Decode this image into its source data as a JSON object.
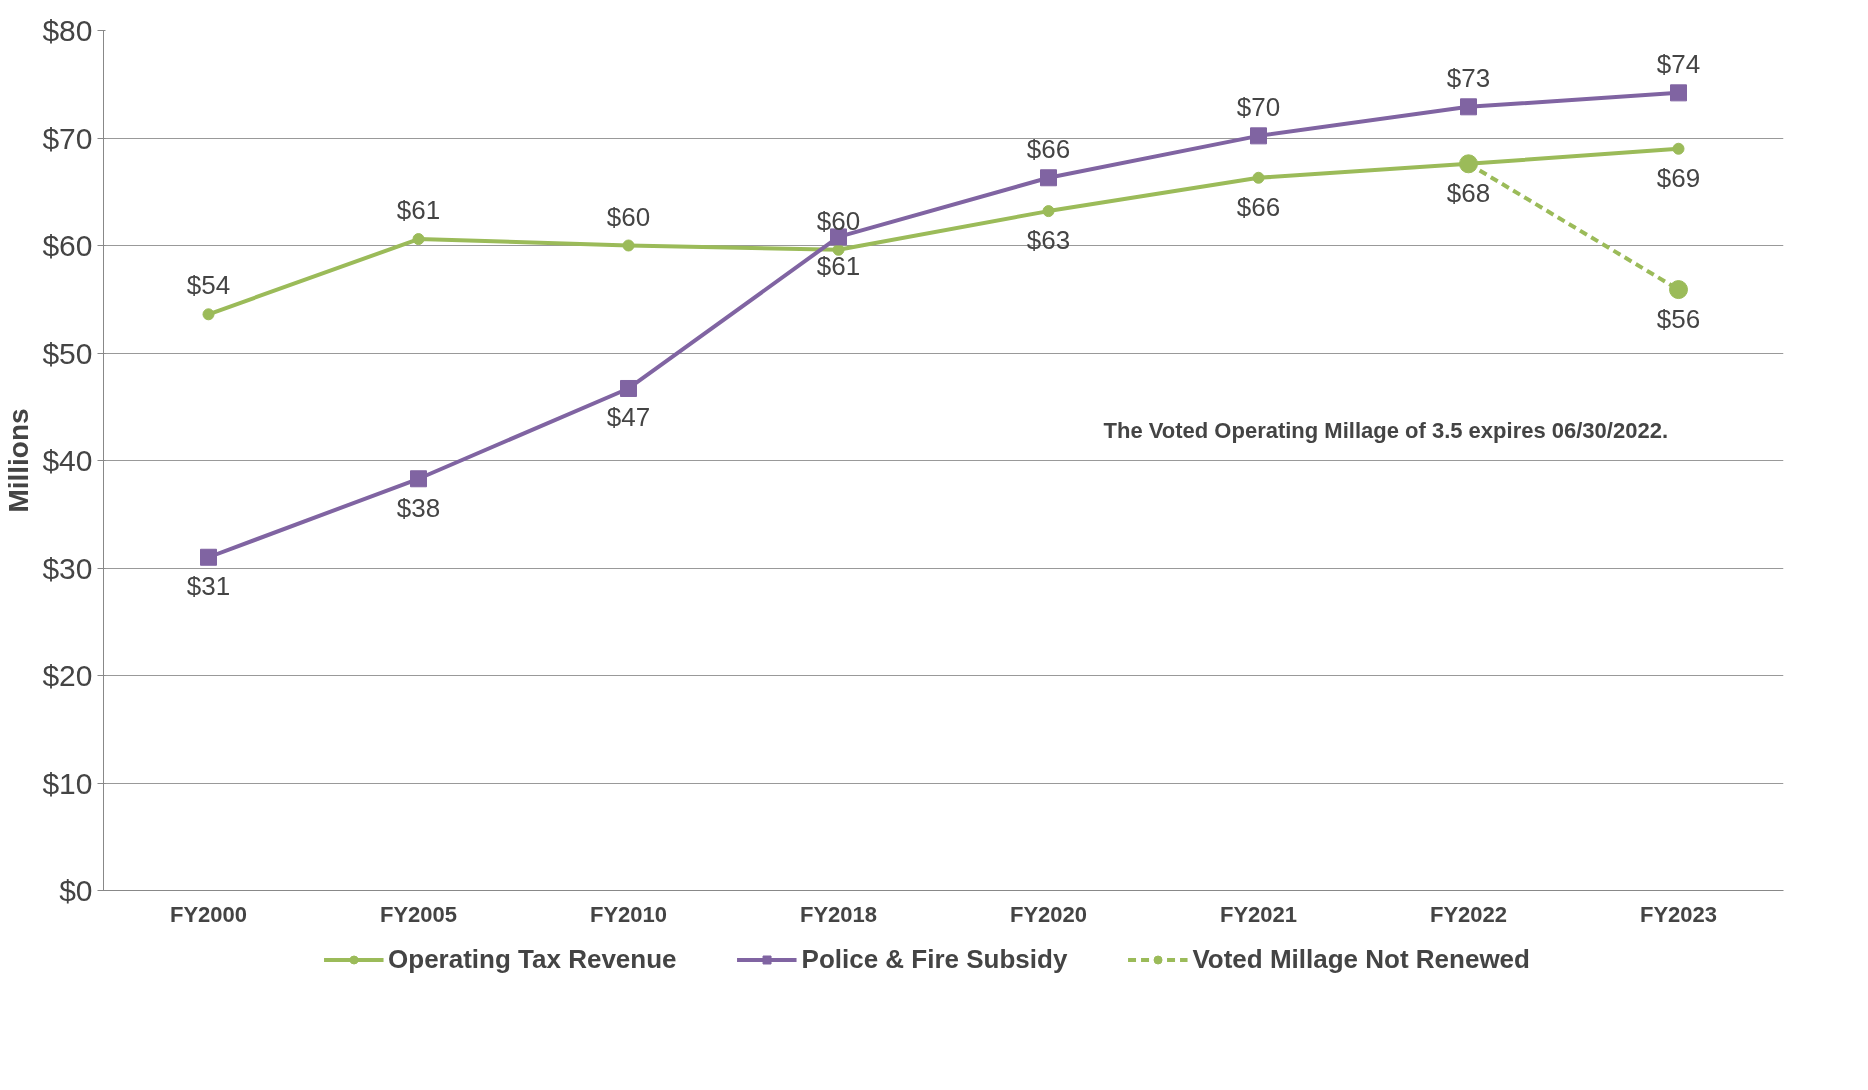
{
  "chart_data": {
    "type": "line",
    "ylabel": "Millions",
    "categories": [
      "FY2000",
      "FY2005",
      "FY2010",
      "FY2018",
      "FY2020",
      "FY2021",
      "FY2022",
      "FY2023"
    ],
    "ylim": [
      0,
      80
    ],
    "yticks": [
      {
        "value": 0,
        "label": "$0"
      },
      {
        "value": 10,
        "label": "$10"
      },
      {
        "value": 20,
        "label": "$20"
      },
      {
        "value": 30,
        "label": "$30"
      },
      {
        "value": 40,
        "label": "$40"
      },
      {
        "value": 50,
        "label": "$50"
      },
      {
        "value": 60,
        "label": "$60"
      },
      {
        "value": 70,
        "label": "$70"
      },
      {
        "value": 80,
        "label": "$80"
      }
    ],
    "grid": "y",
    "legend": "bottom",
    "line_style": "solid",
    "series": [
      {
        "name": "Operating Tax Revenue",
        "color": "#9bbb59",
        "marker": "circle",
        "values": [
          53.6,
          60.6,
          60.0,
          59.6,
          63.2,
          66.3,
          67.6,
          69.0
        ],
        "value_labels": [
          "$54",
          "$61",
          "$60",
          "$60",
          "$63",
          "$66",
          "$68",
          "$69"
        ]
      },
      {
        "name": "Police & Fire Subsidy",
        "color": "#8064a2",
        "marker": "square",
        "values": [
          31.0,
          38.3,
          46.7,
          60.8,
          66.3,
          70.2,
          72.9,
          74.2
        ],
        "value_labels": [
          "$31",
          "$38",
          "$47",
          "$61",
          "$66",
          "$70",
          "$73",
          "$74"
        ]
      },
      {
        "name": "Voted Millage Not Renewed",
        "color": "#9bbb59",
        "marker": "circle",
        "line_style": "dashed",
        "values": [
          null,
          null,
          null,
          null,
          null,
          null,
          67.6,
          55.9
        ],
        "value_labels": [
          null,
          null,
          null,
          null,
          null,
          null,
          null,
          "$56"
        ]
      }
    ],
    "annotations": [
      "The Voted Operating Millage of 3.5 expires 06/30/2022."
    ]
  }
}
